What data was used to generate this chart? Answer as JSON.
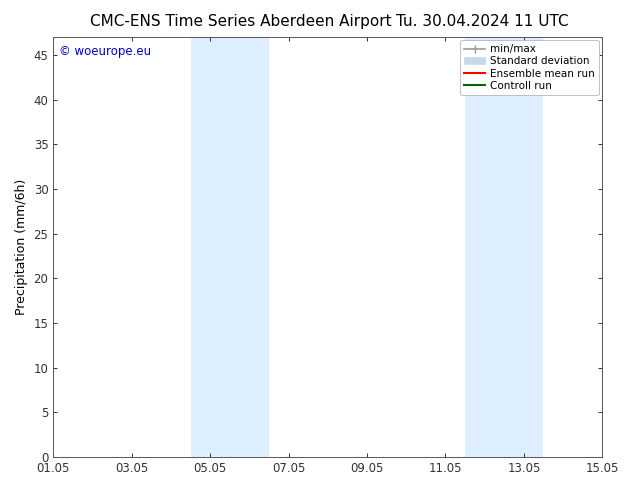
{
  "title_left": "CMC-ENS Time Series Aberdeen Airport",
  "title_right": "Tu. 30.04.2024 11 UTC",
  "ylabel": "Precipitation (mm/6h)",
  "ylim": [
    0,
    47
  ],
  "yticks": [
    0,
    5,
    10,
    15,
    20,
    25,
    30,
    35,
    40,
    45
  ],
  "xtick_labels": [
    "01.05",
    "03.05",
    "05.05",
    "07.05",
    "09.05",
    "11.05",
    "13.05",
    "15.05"
  ],
  "xtick_positions": [
    0,
    2,
    4,
    6,
    8,
    10,
    12,
    14
  ],
  "xlim": [
    0,
    14
  ],
  "shaded_bands": [
    {
      "xstart": 3.5,
      "xend": 5.5
    },
    {
      "xstart": 10.5,
      "xend": 12.5
    }
  ],
  "shade_color": "#ddeeff",
  "bg_color": "#ffffff",
  "plot_bg_color": "#ffffff",
  "watermark": "© woeurope.eu",
  "watermark_color": "#0000cc",
  "legend_entries": [
    {
      "label": "min/max",
      "color": "#999999",
      "lw": 1.2,
      "ls": "solid",
      "type": "line_cap"
    },
    {
      "label": "Standard deviation",
      "color": "#c8d8e8",
      "lw": 6,
      "ls": "solid",
      "type": "patch"
    },
    {
      "label": "Ensemble mean run",
      "color": "#ff0000",
      "lw": 1.5,
      "ls": "solid",
      "type": "line"
    },
    {
      "label": "Controll run",
      "color": "#006600",
      "lw": 1.5,
      "ls": "solid",
      "type": "line"
    }
  ],
  "spine_color": "#555555",
  "tick_color": "#333333",
  "title_fontsize": 11,
  "tick_fontsize": 8.5,
  "ylabel_fontsize": 9,
  "legend_fontsize": 7.5
}
